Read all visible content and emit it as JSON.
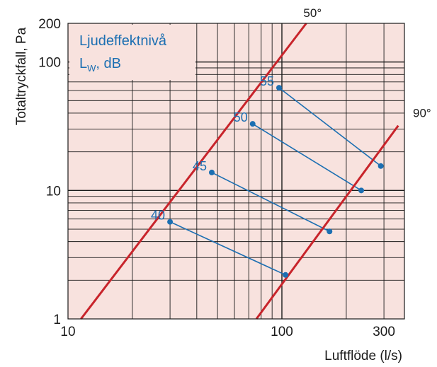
{
  "chart_data": {
    "type": "line",
    "xscale": "log",
    "yscale": "log",
    "xlim": [
      10,
      350
    ],
    "ylim": [
      1,
      200
    ],
    "xlabel": "Luftflöde (l/s)",
    "ylabel": "Totaltryckfall, Pa",
    "x_ticks": [
      {
        "value": 10,
        "label": "10"
      },
      {
        "value": 100,
        "label": "100"
      },
      {
        "value": 300,
        "label": "300"
      }
    ],
    "y_ticks": [
      {
        "value": 1,
        "label": "1"
      },
      {
        "value": 10,
        "label": "10"
      },
      {
        "value": 100,
        "label": "100"
      },
      {
        "value": 200,
        "label": "200"
      }
    ],
    "legend_box": {
      "line1": "Ljudeffektnivå",
      "line2_main": "L",
      "line2_sub": "W",
      "line2_rest": ", dB"
    },
    "series": [
      {
        "name": "50°",
        "color": "#c8242b",
        "points": [
          [
            11.5,
            1
          ],
          [
            130,
            200
          ]
        ]
      },
      {
        "name": "90°",
        "color": "#c8242b",
        "points": [
          [
            76,
            1
          ],
          [
            350,
            32
          ]
        ]
      }
    ],
    "sound_levels": [
      {
        "label": "40",
        "p1": [
          30,
          5.7
        ],
        "p2": [
          104,
          2.2
        ]
      },
      {
        "label": "45",
        "p1": [
          47,
          13.8
        ],
        "p2": [
          167,
          4.8
        ]
      },
      {
        "label": "50",
        "p1": [
          73,
          33
        ],
        "p2": [
          235,
          10
        ]
      },
      {
        "label": "55",
        "p1": [
          97,
          63
        ],
        "p2": [
          290,
          15.5
        ]
      }
    ],
    "colors": {
      "background": "#f8e2de",
      "grid": "#1a1a1a",
      "lines": "#c8242b",
      "levels": "#1c6fb2"
    }
  }
}
